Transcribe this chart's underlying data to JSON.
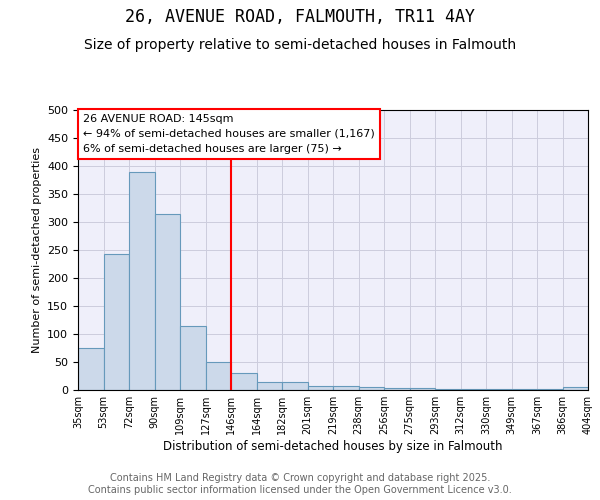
{
  "title1": "26, AVENUE ROAD, FALMOUTH, TR11 4AY",
  "title2": "Size of property relative to semi-detached houses in Falmouth",
  "xlabel": "Distribution of semi-detached houses by size in Falmouth",
  "ylabel": "Number of semi-detached properties",
  "bar_color": "#ccd9ea",
  "bar_edge_color": "#6699bb",
  "bg_color": "#efeffa",
  "grid_color": "#ccccdd",
  "bin_labels": [
    "35sqm",
    "53sqm",
    "72sqm",
    "90sqm",
    "109sqm",
    "127sqm",
    "146sqm",
    "164sqm",
    "182sqm",
    "201sqm",
    "219sqm",
    "238sqm",
    "256sqm",
    "275sqm",
    "293sqm",
    "312sqm",
    "330sqm",
    "349sqm",
    "367sqm",
    "386sqm",
    "404sqm"
  ],
  "values": [
    75,
    243,
    390,
    315,
    115,
    50,
    30,
    15,
    15,
    8,
    8,
    6,
    3,
    3,
    2,
    2,
    1,
    1,
    1,
    5
  ],
  "red_line_bin_index": 6,
  "annotation_line1": "26 AVENUE ROAD: 145sqm",
  "annotation_line2": "← 94% of semi-detached houses are smaller (1,167)",
  "annotation_line3": "6% of semi-detached houses are larger (75) →",
  "ylim": [
    0,
    500
  ],
  "yticks": [
    0,
    50,
    100,
    150,
    200,
    250,
    300,
    350,
    400,
    450,
    500
  ],
  "title1_fontsize": 12,
  "title2_fontsize": 10,
  "ann_fontsize": 8,
  "footer_text": "Contains HM Land Registry data © Crown copyright and database right 2025.\nContains public sector information licensed under the Open Government Licence v3.0.",
  "footer_fontsize": 7
}
